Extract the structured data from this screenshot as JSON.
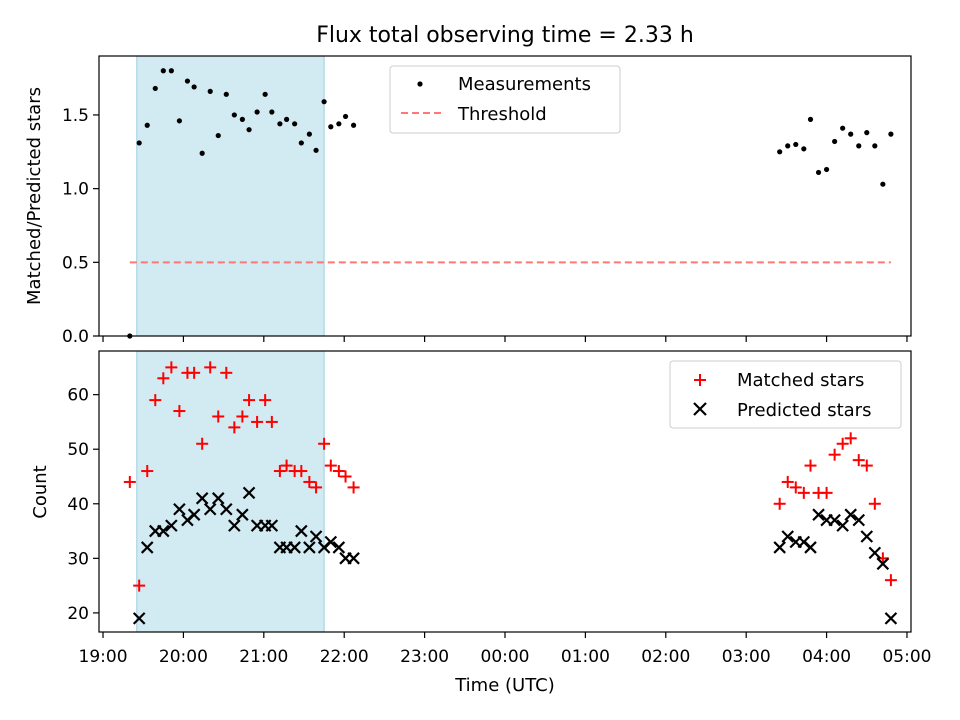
{
  "figure": {
    "title": "Flux total observing time = 2.33 h",
    "xlabel": "Time (UTC)",
    "x_tick_labels": [
      "19:00",
      "20:00",
      "21:00",
      "22:00",
      "23:00",
      "00:00",
      "01:00",
      "02:00",
      "03:00",
      "04:00",
      "05:00"
    ],
    "x_ticks_hours": [
      0,
      1,
      2,
      3,
      4,
      5,
      6,
      7,
      8,
      9,
      10
    ],
    "x_range_hours_after_1900": [
      -0.05,
      10.05
    ],
    "highlight_span_hours": [
      0.42,
      2.75
    ],
    "highlight_color": "#add8e6"
  },
  "chart_data": [
    {
      "type": "scatter",
      "ylabel": "Matched/Predicted stars",
      "ylim": [
        0,
        1.9
      ],
      "yticks": [
        0.0,
        0.5,
        1.0,
        1.5
      ],
      "ytick_labels": [
        "0.0",
        "0.5",
        "1.0",
        "1.5"
      ],
      "legend_position": "top-center",
      "series": [
        {
          "name": "Measurements",
          "marker": "dot",
          "color": "#000000",
          "x_label": "Time (UTC)",
          "points": [
            {
              "x": "19:20",
              "y": 0.0
            },
            {
              "x": "19:27",
              "y": 1.31
            },
            {
              "x": "19:33",
              "y": 1.43
            },
            {
              "x": "19:39",
              "y": 1.68
            },
            {
              "x": "19:45",
              "y": 1.8
            },
            {
              "x": "19:51",
              "y": 1.8
            },
            {
              "x": "19:57",
              "y": 1.46
            },
            {
              "x": "20:03",
              "y": 1.73
            },
            {
              "x": "20:08",
              "y": 1.69
            },
            {
              "x": "20:14",
              "y": 1.24
            },
            {
              "x": "20:20",
              "y": 1.66
            },
            {
              "x": "20:26",
              "y": 1.36
            },
            {
              "x": "20:32",
              "y": 1.64
            },
            {
              "x": "20:38",
              "y": 1.5
            },
            {
              "x": "20:44",
              "y": 1.47
            },
            {
              "x": "20:49",
              "y": 1.4
            },
            {
              "x": "20:55",
              "y": 1.52
            },
            {
              "x": "21:01",
              "y": 1.64
            },
            {
              "x": "21:06",
              "y": 1.52
            },
            {
              "x": "21:12",
              "y": 1.44
            },
            {
              "x": "21:17",
              "y": 1.47
            },
            {
              "x": "21:23",
              "y": 1.44
            },
            {
              "x": "21:28",
              "y": 1.31
            },
            {
              "x": "21:34",
              "y": 1.37
            },
            {
              "x": "21:39",
              "y": 1.26
            },
            {
              "x": "21:45",
              "y": 1.59
            },
            {
              "x": "21:50",
              "y": 1.42
            },
            {
              "x": "21:56",
              "y": 1.44
            },
            {
              "x": "22:01",
              "y": 1.49
            },
            {
              "x": "22:07",
              "y": 1.43
            },
            {
              "x": "03:25",
              "y": 1.25
            },
            {
              "x": "03:31",
              "y": 1.29
            },
            {
              "x": "03:37",
              "y": 1.3
            },
            {
              "x": "03:43",
              "y": 1.27
            },
            {
              "x": "03:48",
              "y": 1.47
            },
            {
              "x": "03:54",
              "y": 1.11
            },
            {
              "x": "04:00",
              "y": 1.13
            },
            {
              "x": "04:06",
              "y": 1.32
            },
            {
              "x": "04:12",
              "y": 1.41
            },
            {
              "x": "04:18",
              "y": 1.37
            },
            {
              "x": "04:24",
              "y": 1.29
            },
            {
              "x": "04:30",
              "y": 1.38
            },
            {
              "x": "04:36",
              "y": 1.29
            },
            {
              "x": "04:42",
              "y": 1.03
            },
            {
              "x": "04:48",
              "y": 1.37
            }
          ]
        },
        {
          "name": "Threshold",
          "marker": "dashed-line",
          "color": "#ff7777",
          "x": [
            "19:20",
            "04:48"
          ],
          "y": [
            0.5,
            0.5
          ]
        }
      ]
    },
    {
      "type": "scatter",
      "ylabel": "Count",
      "ylim": [
        16.5,
        68
      ],
      "yticks": [
        20,
        30,
        40,
        50,
        60
      ],
      "ytick_labels": [
        "20",
        "30",
        "40",
        "50",
        "60"
      ],
      "legend_position": "top-right",
      "series": [
        {
          "name": "Matched stars",
          "marker": "plus",
          "color": "#ff0000",
          "points": [
            {
              "x": "19:20",
              "y": 44
            },
            {
              "x": "19:27",
              "y": 25
            },
            {
              "x": "19:33",
              "y": 46
            },
            {
              "x": "19:39",
              "y": 59
            },
            {
              "x": "19:45",
              "y": 63
            },
            {
              "x": "19:51",
              "y": 65
            },
            {
              "x": "19:57",
              "y": 57
            },
            {
              "x": "20:03",
              "y": 64
            },
            {
              "x": "20:08",
              "y": 64
            },
            {
              "x": "20:14",
              "y": 51
            },
            {
              "x": "20:20",
              "y": 65
            },
            {
              "x": "20:26",
              "y": 56
            },
            {
              "x": "20:32",
              "y": 64
            },
            {
              "x": "20:38",
              "y": 54
            },
            {
              "x": "20:44",
              "y": 56
            },
            {
              "x": "20:49",
              "y": 59
            },
            {
              "x": "20:55",
              "y": 55
            },
            {
              "x": "21:01",
              "y": 59
            },
            {
              "x": "21:06",
              "y": 55
            },
            {
              "x": "21:12",
              "y": 46
            },
            {
              "x": "21:17",
              "y": 47
            },
            {
              "x": "21:23",
              "y": 46
            },
            {
              "x": "21:28",
              "y": 46
            },
            {
              "x": "21:34",
              "y": 44
            },
            {
              "x": "21:39",
              "y": 43
            },
            {
              "x": "21:45",
              "y": 51
            },
            {
              "x": "21:50",
              "y": 47
            },
            {
              "x": "21:56",
              "y": 46
            },
            {
              "x": "22:01",
              "y": 45
            },
            {
              "x": "22:07",
              "y": 43
            },
            {
              "x": "03:25",
              "y": 40
            },
            {
              "x": "03:31",
              "y": 44
            },
            {
              "x": "03:37",
              "y": 43
            },
            {
              "x": "03:43",
              "y": 42
            },
            {
              "x": "03:48",
              "y": 47
            },
            {
              "x": "03:54",
              "y": 42
            },
            {
              "x": "04:00",
              "y": 42
            },
            {
              "x": "04:06",
              "y": 49
            },
            {
              "x": "04:12",
              "y": 51
            },
            {
              "x": "04:18",
              "y": 52
            },
            {
              "x": "04:24",
              "y": 48
            },
            {
              "x": "04:30",
              "y": 47
            },
            {
              "x": "04:36",
              "y": 40
            },
            {
              "x": "04:42",
              "y": 30
            },
            {
              "x": "04:48",
              "y": 26
            }
          ]
        },
        {
          "name": "Predicted stars",
          "marker": "x",
          "color": "#000000",
          "points": [
            {
              "x": "19:27",
              "y": 19
            },
            {
              "x": "19:33",
              "y": 32
            },
            {
              "x": "19:39",
              "y": 35
            },
            {
              "x": "19:45",
              "y": 35
            },
            {
              "x": "19:51",
              "y": 36
            },
            {
              "x": "19:57",
              "y": 39
            },
            {
              "x": "20:03",
              "y": 37
            },
            {
              "x": "20:08",
              "y": 38
            },
            {
              "x": "20:14",
              "y": 41
            },
            {
              "x": "20:20",
              "y": 39
            },
            {
              "x": "20:26",
              "y": 41
            },
            {
              "x": "20:32",
              "y": 39
            },
            {
              "x": "20:38",
              "y": 36
            },
            {
              "x": "20:44",
              "y": 38
            },
            {
              "x": "20:49",
              "y": 42
            },
            {
              "x": "20:55",
              "y": 36
            },
            {
              "x": "21:01",
              "y": 36
            },
            {
              "x": "21:06",
              "y": 36
            },
            {
              "x": "21:12",
              "y": 32
            },
            {
              "x": "21:17",
              "y": 32
            },
            {
              "x": "21:23",
              "y": 32
            },
            {
              "x": "21:28",
              "y": 35
            },
            {
              "x": "21:34",
              "y": 32
            },
            {
              "x": "21:39",
              "y": 34
            },
            {
              "x": "21:45",
              "y": 32
            },
            {
              "x": "21:50",
              "y": 33
            },
            {
              "x": "21:56",
              "y": 32
            },
            {
              "x": "22:01",
              "y": 30
            },
            {
              "x": "22:07",
              "y": 30
            },
            {
              "x": "03:25",
              "y": 32
            },
            {
              "x": "03:31",
              "y": 34
            },
            {
              "x": "03:37",
              "y": 33
            },
            {
              "x": "03:43",
              "y": 33
            },
            {
              "x": "03:48",
              "y": 32
            },
            {
              "x": "03:54",
              "y": 38
            },
            {
              "x": "04:00",
              "y": 37
            },
            {
              "x": "04:06",
              "y": 37
            },
            {
              "x": "04:12",
              "y": 36
            },
            {
              "x": "04:18",
              "y": 38
            },
            {
              "x": "04:24",
              "y": 37
            },
            {
              "x": "04:30",
              "y": 34
            },
            {
              "x": "04:36",
              "y": 31
            },
            {
              "x": "04:42",
              "y": 29
            },
            {
              "x": "04:48",
              "y": 19
            }
          ]
        }
      ]
    }
  ]
}
